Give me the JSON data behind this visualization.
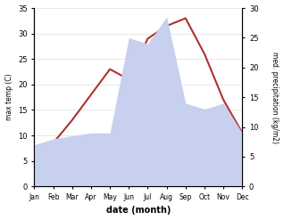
{
  "months": [
    "Jan",
    "Feb",
    "Mar",
    "Apr",
    "May",
    "Jun",
    "Jul",
    "Aug",
    "Sep",
    "Oct",
    "Nov",
    "Dec"
  ],
  "temp": [
    7.5,
    8.5,
    13.0,
    18.0,
    23.0,
    21.0,
    29.0,
    31.5,
    33.0,
    26.0,
    17.0,
    10.5
  ],
  "precip": [
    7.0,
    8.0,
    8.5,
    9.0,
    9.0,
    25.0,
    24.0,
    28.5,
    14.0,
    13.0,
    14.0,
    9.0
  ],
  "temp_color": "#b03030",
  "precip_fill_color": "#c8d0f0",
  "precip_edge_color": "#b0b8e8",
  "temp_ylim": [
    0,
    35
  ],
  "precip_ylim": [
    0,
    30
  ],
  "xlabel": "date (month)",
  "ylabel_left": "max temp (C)",
  "ylabel_right": "med. precipitation (kg/m2)",
  "bg_color": "#ffffff",
  "temp_yticks": [
    0,
    5,
    10,
    15,
    20,
    25,
    30,
    35
  ],
  "precip_yticks": [
    0,
    5,
    10,
    15,
    20,
    25,
    30
  ]
}
